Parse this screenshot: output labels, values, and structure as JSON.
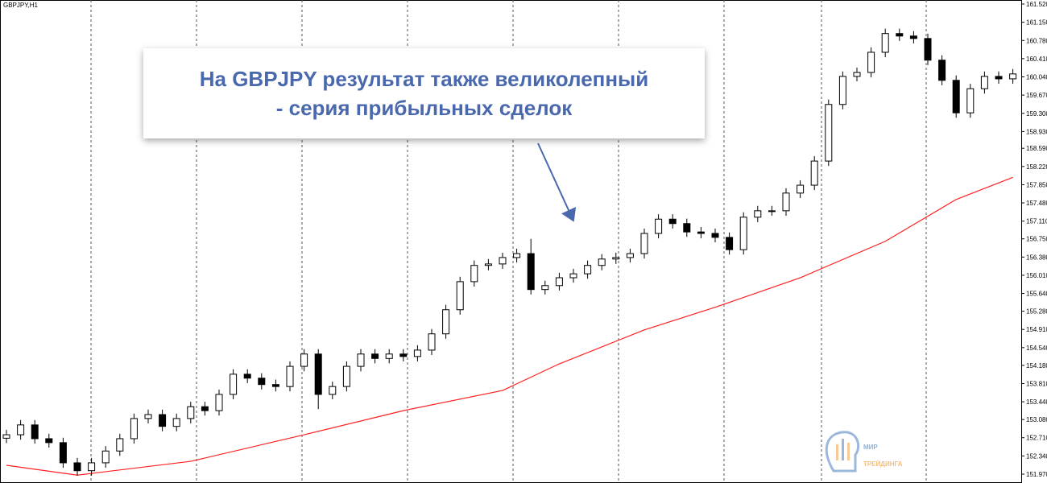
{
  "chart_data": {
    "type": "candlestick",
    "title": "GBPJPY,H1",
    "annotation": [
      "На GBPJPY результат также великолепный",
      "- серия прибыльных сделок"
    ],
    "logo": [
      "МИР",
      "ТРЕЙДИНГА"
    ],
    "ylim": [
      151.79,
      161.602
    ],
    "yticks": [
      {
        "value": 161.52,
        "label": "161.520"
      },
      {
        "value": 161.15,
        "label": "161.150"
      },
      {
        "value": 160.78,
        "label": "160.780"
      },
      {
        "value": 160.41,
        "label": "160.410"
      },
      {
        "value": 160.04,
        "label": "160.040"
      },
      {
        "value": 159.67,
        "label": "159.670"
      },
      {
        "value": 159.3,
        "label": "159.300"
      },
      {
        "value": 158.93,
        "label": "158.930"
      },
      {
        "value": 158.59,
        "label": "158.590"
      },
      {
        "value": 158.22,
        "label": "158.220"
      },
      {
        "value": 157.85,
        "label": "157.850"
      },
      {
        "value": 157.48,
        "label": "157.480"
      },
      {
        "value": 157.11,
        "label": "157.110"
      },
      {
        "value": 156.75,
        "label": "156.750"
      },
      {
        "value": 156.38,
        "label": "156.380"
      },
      {
        "value": 156.01,
        "label": "156.010"
      },
      {
        "value": 155.64,
        "label": "155.640"
      },
      {
        "value": 155.28,
        "label": "155.280"
      },
      {
        "value": 154.91,
        "label": "154.910"
      },
      {
        "value": 154.54,
        "label": "154.540"
      },
      {
        "value": 154.18,
        "label": "154.180"
      },
      {
        "value": 153.81,
        "label": "153.810"
      },
      {
        "value": 153.44,
        "label": "153.440"
      },
      {
        "value": 153.08,
        "label": "153.080"
      },
      {
        "value": 152.71,
        "label": "152.710"
      },
      {
        "value": 152.34,
        "label": "152.340"
      },
      {
        "value": 151.97,
        "label": "151.970"
      }
    ],
    "open": [
      152.7,
      152.77,
      152.97,
      152.69,
      152.61,
      152.2,
      152.04,
      152.2,
      152.44,
      152.69,
      153.1,
      153.18,
      152.94,
      153.1,
      153.34,
      153.26,
      153.59,
      154.0,
      153.92,
      153.79,
      153.75,
      154.16,
      154.41,
      153.59,
      153.75,
      154.16,
      154.41,
      154.32,
      154.41,
      154.36,
      154.49,
      154.82,
      155.31,
      155.88,
      156.21,
      156.24,
      156.37,
      156.45,
      155.72,
      155.8,
      155.96,
      156.04,
      156.21,
      156.34,
      156.37,
      156.45,
      156.86,
      157.15,
      157.06,
      156.89,
      156.86,
      156.78,
      156.53,
      157.19,
      157.32,
      157.32,
      157.68,
      157.84,
      158.33,
      159.48,
      160.05,
      160.13,
      160.54,
      160.92,
      160.87,
      160.82,
      160.38,
      159.97,
      159.31,
      159.8,
      160.05,
      160.0
    ],
    "high": [
      152.87,
      153.07,
      153.07,
      152.79,
      152.71,
      152.3,
      152.3,
      152.54,
      152.79,
      153.2,
      153.28,
      153.28,
      153.2,
      153.44,
      153.44,
      153.69,
      154.1,
      154.1,
      154.02,
      153.89,
      154.26,
      154.51,
      154.51,
      153.85,
      154.26,
      154.51,
      154.51,
      154.51,
      154.51,
      154.59,
      154.92,
      155.41,
      155.98,
      156.31,
      156.34,
      156.47,
      156.55,
      156.75,
      155.9,
      156.06,
      156.14,
      156.31,
      156.44,
      156.47,
      156.55,
      156.96,
      157.25,
      157.25,
      157.16,
      156.99,
      156.96,
      156.88,
      157.29,
      157.42,
      157.42,
      157.78,
      157.94,
      158.43,
      159.58,
      160.15,
      160.23,
      160.64,
      161.02,
      161.02,
      160.97,
      160.92,
      160.48,
      160.07,
      159.9,
      160.15,
      160.15,
      160.2
    ],
    "low": [
      152.6,
      152.67,
      152.59,
      152.51,
      152.1,
      151.94,
      151.94,
      152.1,
      152.34,
      152.59,
      153.0,
      152.84,
      152.84,
      153.0,
      153.16,
      153.16,
      153.49,
      153.82,
      153.69,
      153.65,
      153.65,
      154.06,
      153.29,
      153.49,
      153.65,
      154.06,
      154.22,
      154.22,
      154.26,
      154.26,
      154.39,
      154.72,
      155.21,
      155.78,
      156.11,
      156.14,
      156.27,
      155.62,
      155.62,
      155.7,
      155.86,
      155.94,
      156.11,
      156.24,
      156.27,
      156.35,
      156.76,
      156.96,
      156.79,
      156.76,
      156.68,
      156.43,
      156.43,
      157.09,
      157.22,
      157.22,
      157.58,
      157.74,
      158.23,
      159.38,
      159.95,
      160.03,
      160.44,
      160.77,
      160.72,
      160.28,
      159.87,
      159.21,
      159.21,
      159.7,
      159.9,
      159.9
    ],
    "close": [
      152.77,
      152.97,
      152.69,
      152.61,
      152.2,
      152.04,
      152.2,
      152.44,
      152.69,
      153.1,
      153.18,
      152.94,
      153.1,
      153.34,
      153.26,
      153.59,
      154.0,
      153.92,
      153.79,
      153.75,
      154.16,
      154.41,
      153.59,
      153.75,
      154.16,
      154.41,
      154.32,
      154.41,
      154.36,
      154.49,
      154.82,
      155.31,
      155.88,
      156.21,
      156.24,
      156.37,
      156.45,
      155.72,
      155.8,
      155.96,
      156.04,
      156.21,
      156.34,
      156.37,
      156.45,
      156.86,
      157.15,
      157.06,
      156.89,
      156.86,
      156.78,
      156.53,
      157.19,
      157.32,
      157.32,
      157.68,
      157.84,
      158.33,
      159.48,
      160.05,
      160.13,
      160.54,
      160.92,
      160.87,
      160.82,
      160.38,
      159.97,
      159.31,
      159.8,
      160.05,
      160.0,
      160.1
    ],
    "moving_average": {
      "color": "#ff2020",
      "x": [
        0,
        5,
        13,
        21,
        28,
        35,
        39,
        45,
        50,
        56,
        62,
        67,
        71
      ],
      "values": [
        152.15,
        151.95,
        152.23,
        152.77,
        153.26,
        153.67,
        154.21,
        154.9,
        155.36,
        155.96,
        156.7,
        157.55,
        158.0
      ]
    }
  }
}
